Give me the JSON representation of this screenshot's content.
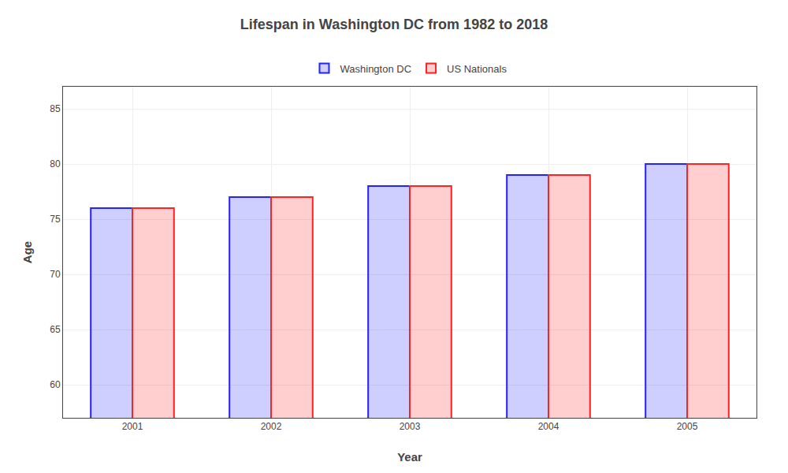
{
  "chart_data": {
    "type": "bar",
    "title": "Lifespan in Washington DC from 1982 to 2018",
    "xlabel": "Year",
    "ylabel": "Age",
    "categories": [
      "2001",
      "2002",
      "2003",
      "2004",
      "2005"
    ],
    "series": [
      {
        "name": "Washington DC",
        "color": "#2222ff",
        "values": [
          76,
          77,
          78,
          79,
          80
        ]
      },
      {
        "name": "US Nationals",
        "color": "#ff2222",
        "values": [
          76,
          77,
          78,
          79,
          80
        ]
      }
    ],
    "ylim": [
      57,
      87
    ],
    "yticks": [
      60,
      65,
      70,
      75,
      80,
      85
    ],
    "grid": true,
    "legend": "top"
  }
}
